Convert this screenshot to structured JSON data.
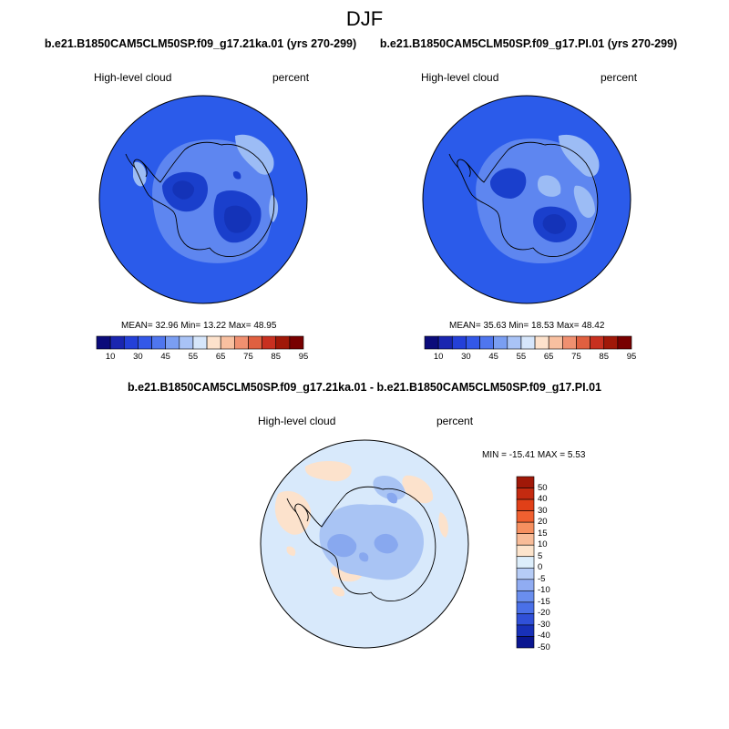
{
  "figure": {
    "title": "DJF"
  },
  "panels": [
    {
      "title": "b.e21.B1850CAM5CLM50SP.f09_g17.21ka.01 (yrs 270-299)",
      "left_label": "High-level cloud",
      "right_label": "percent",
      "stats": "MEAN=  32.96  Min=  13.22  Max=  48.95"
    },
    {
      "title": "b.e21.B1850CAM5CLM50SP.f09_g17.PI.01 (yrs 270-299)",
      "left_label": "High-level cloud",
      "right_label": "percent",
      "stats": "MEAN=  35.63  Min=  18.53  Max=  48.42"
    },
    {
      "title": "b.e21.B1850CAM5CLM50SP.f09_g17.21ka.01 - b.e21.B1850CAM5CLM50SP.f09_g17.PI.01",
      "left_label": "High-level cloud",
      "right_label": "percent",
      "stats": "MIN = -15.41 MAX =   5.53"
    }
  ],
  "colorbar_abs": {
    "colors": [
      "#0b0b7a",
      "#1a26b0",
      "#2440d8",
      "#3358e8",
      "#4f76ee",
      "#7a9ef2",
      "#a9c3f6",
      "#d6e6fb",
      "#fde2cc",
      "#f8c0a0",
      "#f09070",
      "#e06040",
      "#c83020",
      "#a01808",
      "#780000"
    ],
    "ticks": [
      "10",
      "30",
      "45",
      "55",
      "65",
      "75",
      "85",
      "95"
    ]
  },
  "colorbar_diff": {
    "colors_top_to_bottom": [
      "#a01808",
      "#c42a10",
      "#e04018",
      "#f06030",
      "#f69060",
      "#f8bc98",
      "#fde4cc",
      "#ddeefb",
      "#b6ccf6",
      "#90acf2",
      "#6a8eee",
      "#4a70e8",
      "#3050d8",
      "#1830b8",
      "#0a1690"
    ],
    "ticks": [
      "50",
      "40",
      "30",
      "20",
      "15",
      "10",
      "5",
      "0",
      "-5",
      "-10",
      "-15",
      "-20",
      "-30",
      "-40",
      "-50"
    ]
  },
  "map_colors": {
    "abs_base": "#2b5bea",
    "abs_light": "#5e86f0",
    "abs_pale": "#9cbcf5",
    "abs_dark": "#1a3fcc",
    "abs_darker": "#1433b8",
    "diff_base": "#d8e9fb",
    "diff_light_blue": "#a9c4f4",
    "diff_mid_blue": "#88a8ef",
    "diff_peach": "#fce2cc"
  }
}
